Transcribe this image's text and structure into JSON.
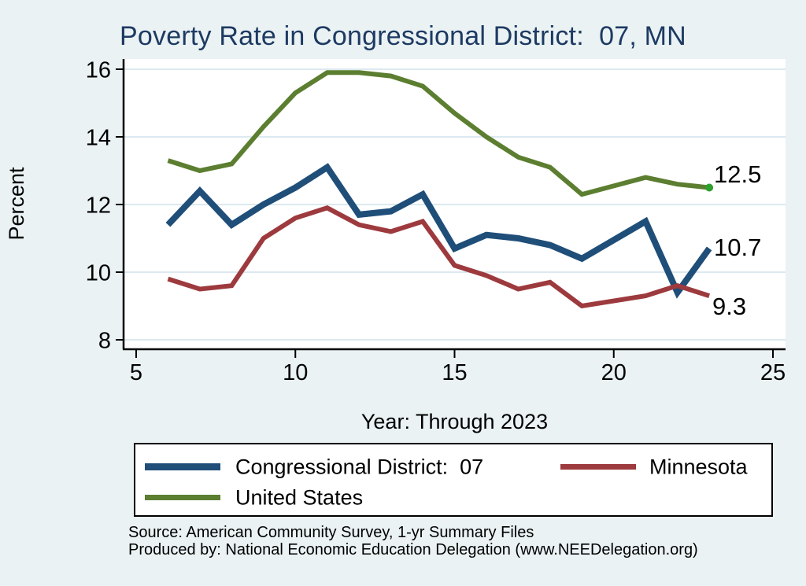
{
  "title": "Poverty Rate in Congressional District:  07, MN",
  "source_line1": "Source: American Community Survey, 1-yr Summary Files",
  "source_line2": "Produced by: National Economic Education Delegation (www.NEEDelegation.org)",
  "colors": {
    "background": "#eaf2f3",
    "plot_background": "#ffffff",
    "gridline": "#dce9f0",
    "axis": "#000000",
    "title": "#1e3a63",
    "district_line": "#1f4e79",
    "minnesota_line": "#9d3a3e",
    "us_line": "#5c7e30",
    "end_marker": "#2da02d"
  },
  "chart_data": {
    "type": "line",
    "title": "Poverty Rate in Congressional District:  07, MN",
    "xlabel": "Year: Through 2023",
    "ylabel": "Percent",
    "x_ticks": [
      5,
      10,
      15,
      20,
      25
    ],
    "y_ticks": [
      8,
      10,
      12,
      14,
      16
    ],
    "xlim": [
      4.6,
      25.4
    ],
    "ylim": [
      7.7,
      16.3
    ],
    "grid": "horizontal-only",
    "legend_position": "bottom",
    "note": "Year 20 (2020) has no observation; lines connect 19 directly to 21",
    "series": [
      {
        "name": "Congressional District:  07",
        "color": "#1f4e79",
        "stroke_width": 8,
        "end_label": "10.7",
        "end_marker": false,
        "points": [
          [
            6,
            11.4
          ],
          [
            7,
            12.4
          ],
          [
            8,
            11.4
          ],
          [
            9,
            12.0
          ],
          [
            10,
            12.5
          ],
          [
            11,
            13.1
          ],
          [
            12,
            11.7
          ],
          [
            13,
            11.8
          ],
          [
            14,
            12.3
          ],
          [
            15,
            10.7
          ],
          [
            16,
            11.1
          ],
          [
            17,
            11.0
          ],
          [
            18,
            10.8
          ],
          [
            19,
            10.4
          ],
          [
            21,
            11.5
          ],
          [
            22,
            9.4
          ],
          [
            23,
            10.7
          ]
        ]
      },
      {
        "name": "Minnesota",
        "color": "#9d3a3e",
        "stroke_width": 6,
        "end_label": "9.3",
        "end_marker": false,
        "points": [
          [
            6,
            9.8
          ],
          [
            7,
            9.5
          ],
          [
            8,
            9.6
          ],
          [
            9,
            11.0
          ],
          [
            10,
            11.6
          ],
          [
            11,
            11.9
          ],
          [
            12,
            11.4
          ],
          [
            13,
            11.2
          ],
          [
            14,
            11.5
          ],
          [
            15,
            10.2
          ],
          [
            16,
            9.9
          ],
          [
            17,
            9.5
          ],
          [
            18,
            9.7
          ],
          [
            19,
            9.0
          ],
          [
            21,
            9.3
          ],
          [
            22,
            9.6
          ],
          [
            23,
            9.3
          ]
        ]
      },
      {
        "name": "United States",
        "color": "#5c7e30",
        "stroke_width": 6,
        "end_label": "12.5",
        "end_marker": true,
        "marker_color": "#2da02d",
        "points": [
          [
            6,
            13.3
          ],
          [
            7,
            13.0
          ],
          [
            8,
            13.2
          ],
          [
            9,
            14.3
          ],
          [
            10,
            15.3
          ],
          [
            11,
            15.9
          ],
          [
            12,
            15.9
          ],
          [
            13,
            15.8
          ],
          [
            14,
            15.5
          ],
          [
            15,
            14.7
          ],
          [
            16,
            14.0
          ],
          [
            17,
            13.4
          ],
          [
            18,
            13.1
          ],
          [
            19,
            12.3
          ],
          [
            21,
            12.8
          ],
          [
            22,
            12.6
          ],
          [
            23,
            12.5
          ]
        ]
      }
    ]
  }
}
